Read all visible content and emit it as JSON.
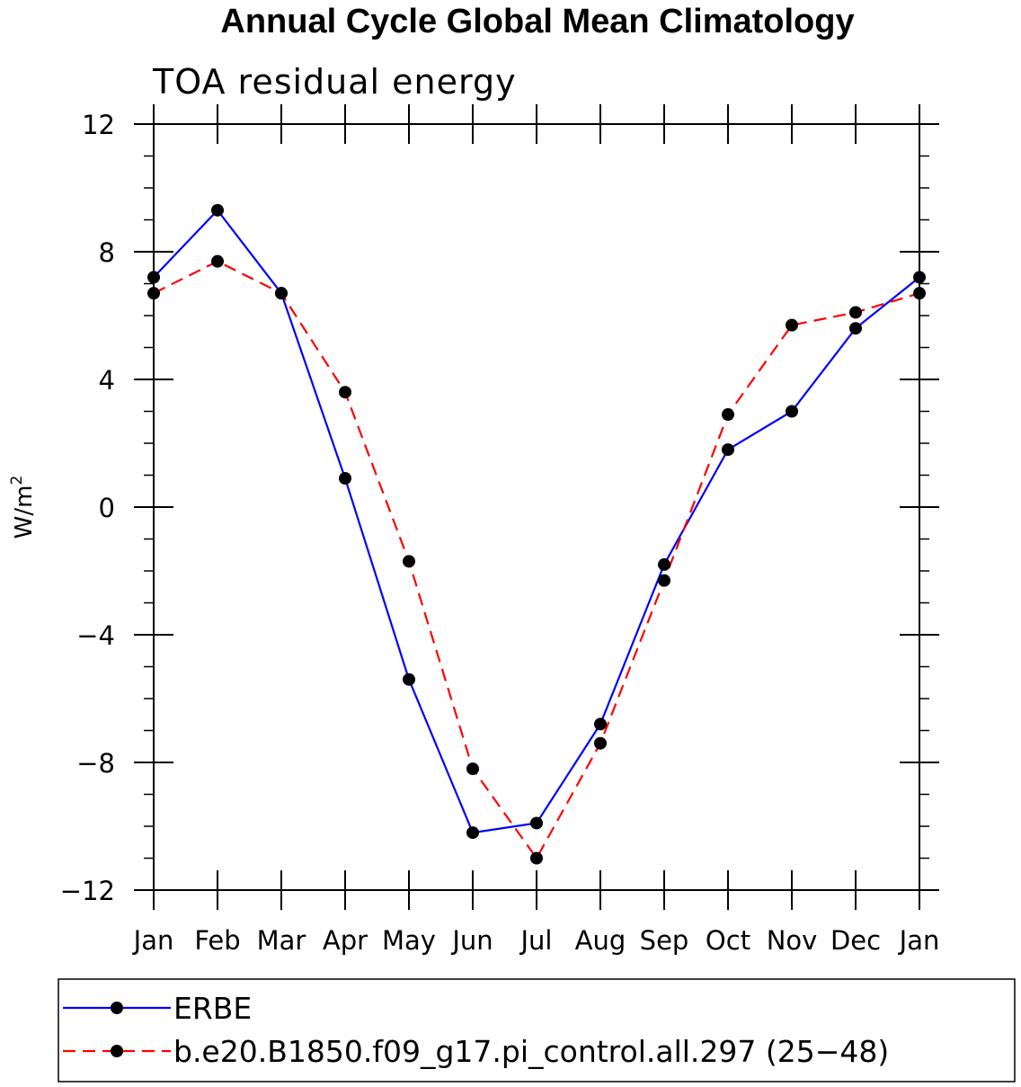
{
  "chart_data": {
    "type": "line",
    "title": "Annual Cycle Global Mean Climatology",
    "subtitle": "TOA residual energy",
    "xlabel": "",
    "ylabel": "W/m",
    "ylabel_superscript": "2",
    "categories": [
      "Jan",
      "Feb",
      "Mar",
      "Apr",
      "May",
      "Jun",
      "Jul",
      "Aug",
      "Sep",
      "Oct",
      "Nov",
      "Dec",
      "Jan"
    ],
    "ylim": [
      -12,
      12
    ],
    "yticks": [
      {
        "value": 12,
        "label": "12"
      },
      {
        "value": 8,
        "label": "8"
      },
      {
        "value": 4,
        "label": "4"
      },
      {
        "value": 0,
        "label": "0"
      },
      {
        "value": -4,
        "label": "−4"
      },
      {
        "value": -8,
        "label": "−8"
      },
      {
        "value": -12,
        "label": "−12"
      }
    ],
    "grid": false,
    "legend_position": "bottom",
    "series": [
      {
        "name": "ERBE",
        "color": "#0000ff",
        "dash": "solid",
        "values": [
          7.2,
          9.3,
          6.7,
          0.9,
          -5.4,
          -10.2,
          -9.9,
          -6.8,
          -1.8,
          1.8,
          3.0,
          5.6,
          7.2
        ]
      },
      {
        "name": "b.e20.B1850.f09_g17.pi_control.all.297 (25−48)",
        "color": "#ff0000",
        "dash": "dashed",
        "values": [
          6.7,
          7.7,
          6.7,
          3.6,
          -1.7,
          -8.2,
          -11.0,
          -7.4,
          -2.3,
          2.9,
          5.7,
          6.1,
          6.7
        ]
      }
    ]
  }
}
